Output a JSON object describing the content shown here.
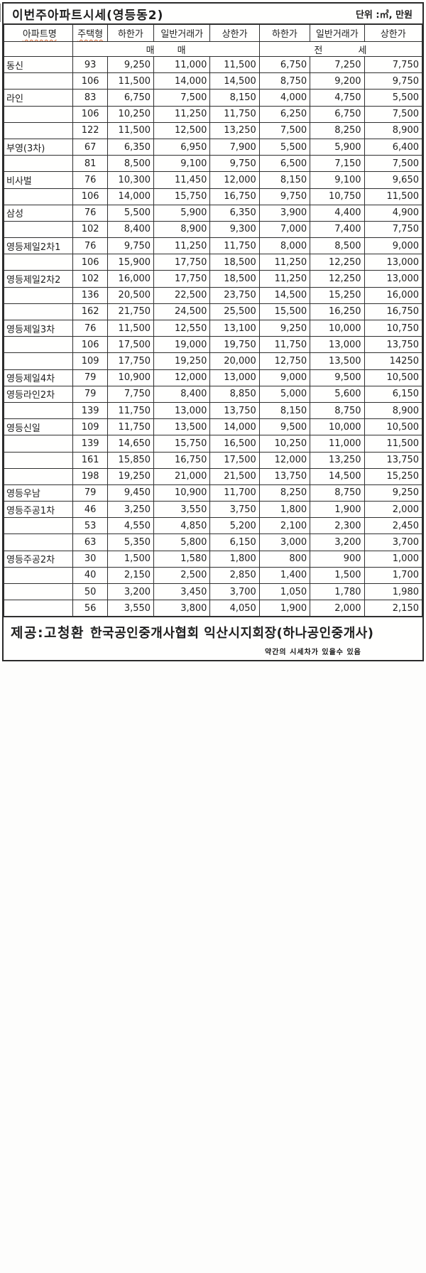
{
  "title": "이번주아파트시세(영등동2)",
  "unit_label": "단위 :㎡, 만원",
  "table": {
    "col_headers": [
      "아파트명",
      "주택형",
      "하한가",
      "일반거래가",
      "상한가",
      "하한가",
      "일반거래가",
      "상한가"
    ],
    "section_headers": {
      "sale": "매 매",
      "jeonse": "전 세"
    },
    "rows": [
      {
        "name": "동신",
        "type": "93",
        "values": [
          "9,250",
          "11,000",
          "11,500",
          "6,750",
          "7,250",
          "7,750"
        ]
      },
      {
        "name": "",
        "type": "106",
        "values": [
          "11,500",
          "14,000",
          "14,500",
          "8,750",
          "9,200",
          "9,750"
        ]
      },
      {
        "name": "라인",
        "type": "83",
        "values": [
          "6,750",
          "7,500",
          "8,150",
          "4,000",
          "4,750",
          "5,500"
        ]
      },
      {
        "name": "",
        "type": "106",
        "values": [
          "10,250",
          "11,250",
          "11,750",
          "6,250",
          "6,750",
          "7,500"
        ]
      },
      {
        "name": "",
        "type": "122",
        "values": [
          "11,500",
          "12,500",
          "13,250",
          "7,500",
          "8,250",
          "8,900"
        ]
      },
      {
        "name": "부영(3차)",
        "type": "67",
        "values": [
          "6,350",
          "6,950",
          "7,900",
          "5,500",
          "5,900",
          "6,400"
        ]
      },
      {
        "name": "",
        "type": "81",
        "values": [
          "8,500",
          "9,100",
          "9,750",
          "6,500",
          "7,150",
          "7,500"
        ]
      },
      {
        "name": "비사벌",
        "type": "76",
        "values": [
          "10,300",
          "11,450",
          "12,000",
          "8,150",
          "9,100",
          "9,650"
        ]
      },
      {
        "name": "",
        "type": "106",
        "values": [
          "14,000",
          "15,750",
          "16,750",
          "9,750",
          "10,750",
          "11,500"
        ]
      },
      {
        "name": "삼성",
        "type": "76",
        "values": [
          "5,500",
          "5,900",
          "6,350",
          "3,900",
          "4,400",
          "4,900"
        ]
      },
      {
        "name": "",
        "type": "102",
        "values": [
          "8,400",
          "8,900",
          "9,300",
          "7,000",
          "7,400",
          "7,750"
        ]
      },
      {
        "name": "영등제일2차1",
        "type": "76",
        "values": [
          "9,750",
          "11,250",
          "11,750",
          "8,000",
          "8,500",
          "9,000"
        ]
      },
      {
        "name": "",
        "type": "106",
        "values": [
          "15,900",
          "17,750",
          "18,500",
          "11,250",
          "12,250",
          "13,000"
        ]
      },
      {
        "name": "영등제일2차2",
        "type": "102",
        "values": [
          "16,000",
          "17,750",
          "18,500",
          "11,250",
          "12,250",
          "13,000"
        ]
      },
      {
        "name": "",
        "type": "136",
        "values": [
          "20,500",
          "22,500",
          "23,750",
          "14,500",
          "15,250",
          "16,000"
        ]
      },
      {
        "name": "",
        "type": "162",
        "values": [
          "21,750",
          "24,500",
          "25,500",
          "15,500",
          "16,250",
          "16,750"
        ]
      },
      {
        "name": "영등제일3차",
        "type": "76",
        "values": [
          "11,500",
          "12,550",
          "13,100",
          "9,250",
          "10,000",
          "10,750"
        ]
      },
      {
        "name": "",
        "type": "106",
        "values": [
          "17,500",
          "19,000",
          "19,750",
          "11,750",
          "13,000",
          "13,750"
        ]
      },
      {
        "name": "",
        "type": "109",
        "values": [
          "17,750",
          "19,250",
          "20,000",
          "12,750",
          "13,500",
          "14250"
        ]
      },
      {
        "name": "영등제일4차",
        "type": "79",
        "values": [
          "10,900",
          "12,000",
          "13,000",
          "9,000",
          "9,500",
          "10,500"
        ]
      },
      {
        "name": "영등라인2차",
        "type": "79",
        "values": [
          "7,750",
          "8,400",
          "8,850",
          "5,000",
          "5,600",
          "6,150"
        ]
      },
      {
        "name": "",
        "type": "139",
        "values": [
          "11,750",
          "13,000",
          "13,750",
          "8,150",
          "8,750",
          "8,900"
        ]
      },
      {
        "name": "영등신일",
        "type": "109",
        "values": [
          "11,750",
          "13,500",
          "14,000",
          "9,500",
          "10,000",
          "10,500"
        ]
      },
      {
        "name": "",
        "type": "139",
        "values": [
          "14,650",
          "15,750",
          "16,500",
          "10,250",
          "11,000",
          "11,500"
        ]
      },
      {
        "name": "",
        "type": "161",
        "values": [
          "15,850",
          "16,750",
          "17,500",
          "12,000",
          "13,250",
          "13,750"
        ]
      },
      {
        "name": "",
        "type": "198",
        "values": [
          "19,250",
          "21,000",
          "21,500",
          "13,750",
          "14,500",
          "15,250"
        ]
      },
      {
        "name": "영등우남",
        "type": "79",
        "values": [
          "9,450",
          "10,900",
          "11,700",
          "8,250",
          "8,750",
          "9,250"
        ]
      },
      {
        "name": "영등주공1차",
        "type": "46",
        "values": [
          "3,250",
          "3,550",
          "3,750",
          "1,800",
          "1,900",
          "2,000"
        ]
      },
      {
        "name": "",
        "type": "53",
        "values": [
          "4,550",
          "4,850",
          "5,200",
          "2,100",
          "2,300",
          "2,450"
        ]
      },
      {
        "name": "",
        "type": "63",
        "values": [
          "5,350",
          "5,800",
          "6,150",
          "3,000",
          "3,200",
          "3,700"
        ]
      },
      {
        "name": "영등주공2차",
        "type": "30",
        "values": [
          "1,500",
          "1,580",
          "1,800",
          "800",
          "900",
          "1,000"
        ]
      },
      {
        "name": "",
        "type": "40",
        "values": [
          "2,150",
          "2,500",
          "2,850",
          "1,400",
          "1,500",
          "1,700"
        ]
      },
      {
        "name": "",
        "type": "50",
        "values": [
          "3,200",
          "3,450",
          "3,700",
          "1,050",
          "1,780",
          "1,980"
        ]
      },
      {
        "name": "",
        "type": "56",
        "values": [
          "3,550",
          "3,800",
          "4,050",
          "1,900",
          "2,000",
          "2,150"
        ]
      }
    ]
  },
  "footer": {
    "provider_name": "제공:고청환",
    "provider_org": "한국공인중개사협회 익산시지회장(하나공인중개사)",
    "note": "약간의 시세차가 있을수 있음"
  }
}
